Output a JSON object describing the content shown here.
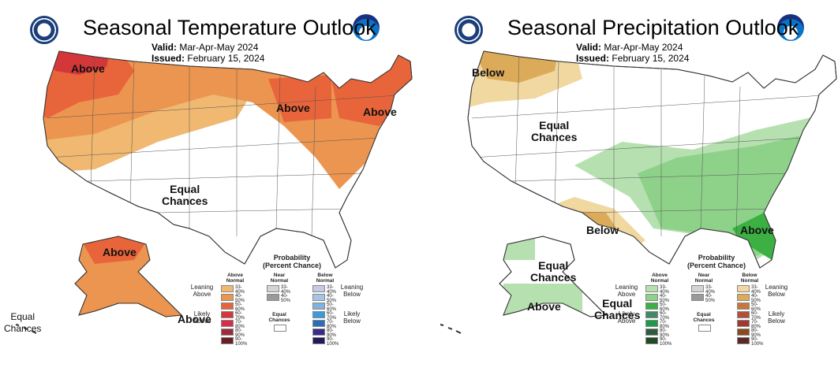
{
  "panels": [
    {
      "title": "Seasonal Temperature Outlook",
      "valid_label": "Valid:",
      "valid": "Mar-Apr-May 2024",
      "issued_label": "Issued:",
      "issued": "February 15, 2024",
      "map_labels": [
        "Above",
        "Above",
        "Above",
        "Equal\nChances",
        "Above",
        "Above",
        "Equal\nChances"
      ],
      "legend": {
        "title": "Probability\n(Percent Chance)",
        "col_above": "Above\nNormal",
        "col_near": "Near\nNormal",
        "col_below": "Below\nNormal",
        "leaning_left": "Leaning\nAbove",
        "likely_left": "Likely\nAbove",
        "leaning_right": "Leaning\nBelow",
        "likely_right": "Likely\nBelow",
        "equal": "Equal\nChances",
        "above": [
          {
            "range": "33-40%",
            "color": "#f0b870"
          },
          {
            "range": "40-50%",
            "color": "#ec9550"
          },
          {
            "range": "50-60%",
            "color": "#e8643a"
          },
          {
            "range": "60-70%",
            "color": "#d4373a"
          },
          {
            "range": "70-80%",
            "color": "#d42e4a"
          },
          {
            "range": "80-90%",
            "color": "#9e2a3a"
          },
          {
            "range": "90-100%",
            "color": "#6b1e24"
          }
        ],
        "near": [
          {
            "range": "33-40%",
            "color": "#d4d4d4"
          },
          {
            "range": "40-50%",
            "color": "#9a9a9a"
          }
        ],
        "below": [
          {
            "range": "33-40%",
            "color": "#c4cae8"
          },
          {
            "range": "40-50%",
            "color": "#a6c4e6"
          },
          {
            "range": "50-60%",
            "color": "#7fb1e4"
          },
          {
            "range": "60-70%",
            "color": "#3c9ad8"
          },
          {
            "range": "70-80%",
            "color": "#2a6fb4"
          },
          {
            "range": "80-90%",
            "color": "#3a2a8a"
          },
          {
            "range": "90-100%",
            "color": "#221a5a"
          }
        ]
      }
    },
    {
      "title": "Seasonal Precipitation Outlook",
      "valid_label": "Valid:",
      "valid": "Mar-Apr-May 2024",
      "issued_label": "Issued:",
      "issued": "February 15, 2024",
      "map_labels": [
        "Below",
        "Equal\nChances",
        "Below",
        "Above",
        "Equal\nChances",
        "Above",
        "Equal\nChances"
      ],
      "legend": {
        "title": "Probability\n(Percent Chance)",
        "col_above": "Above\nNormal",
        "col_near": "Near\nNormal",
        "col_below": "Below\nNormal",
        "leaning_left": "Leaning\nAbove",
        "likely_left": "Likely\nAbove",
        "leaning_right": "Leaning\nBelow",
        "likely_right": "Likely\nBelow",
        "equal": "Equal\nChances",
        "above": [
          {
            "range": "33-40%",
            "color": "#b6e0b0"
          },
          {
            "range": "40-50%",
            "color": "#8ed28a"
          },
          {
            "range": "50-60%",
            "color": "#3cb043"
          },
          {
            "range": "60-70%",
            "color": "#3e8a62"
          },
          {
            "range": "70-80%",
            "color": "#1f9a48"
          },
          {
            "range": "80-90%",
            "color": "#2f5a40"
          },
          {
            "range": "90-100%",
            "color": "#1f4a22"
          }
        ],
        "near": [
          {
            "range": "33-40%",
            "color": "#d4d4d4"
          },
          {
            "range": "40-50%",
            "color": "#9a9a9a"
          }
        ],
        "below": [
          {
            "range": "33-40%",
            "color": "#f0d8a0"
          },
          {
            "range": "40-50%",
            "color": "#dcab5a"
          },
          {
            "range": "50-60%",
            "color": "#c8763c"
          },
          {
            "range": "60-70%",
            "color": "#b0503a"
          },
          {
            "range": "70-80%",
            "color": "#a03a30"
          },
          {
            "range": "80-90%",
            "color": "#8a4a1a"
          },
          {
            "range": "90-100%",
            "color": "#5a2828"
          }
        ]
      }
    }
  ]
}
